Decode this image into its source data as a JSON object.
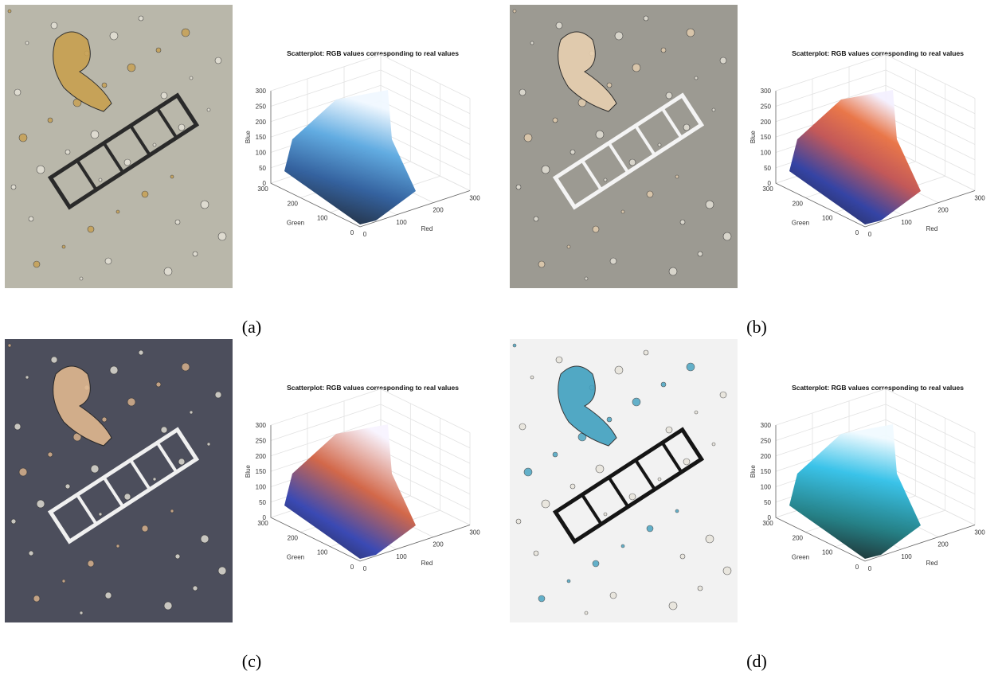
{
  "figure": {
    "panels": [
      {
        "label": "(a)",
        "plot": {
          "title": "Scatterplot: RGB values corresponding to real values",
          "x_label": "Red",
          "y_label": "Green",
          "z_label": "Blue",
          "xlim": [
            0,
            300
          ],
          "ylim": [
            0,
            300
          ],
          "zlim": [
            0,
            300
          ],
          "xticks": [
            0,
            100,
            200,
            300
          ],
          "yticks": [
            0,
            100,
            200,
            300
          ],
          "zticks": [
            0,
            50,
            100,
            150,
            200,
            250,
            300
          ]
        }
      },
      {
        "label": "(b)",
        "plot": {
          "title": "Scatterplot: RGB values corresponding to real values",
          "x_label": "Red",
          "y_label": "Green",
          "z_label": "Blue",
          "xlim": [
            0,
            300
          ],
          "ylim": [
            0,
            300
          ],
          "zlim": [
            0,
            300
          ],
          "xticks": [
            0,
            100,
            200,
            300
          ],
          "yticks": [
            0,
            100,
            200,
            300
          ],
          "zticks": [
            0,
            50,
            100,
            150,
            200,
            250,
            300
          ]
        }
      },
      {
        "label": "(c)",
        "plot": {
          "title": "Scatterplot: RGB values corresponding to real values",
          "x_label": "Red",
          "y_label": "Green",
          "z_label": "Blue",
          "xlim": [
            0,
            300
          ],
          "ylim": [
            0,
            300
          ],
          "zlim": [
            0,
            300
          ],
          "xticks": [
            0,
            100,
            200,
            300
          ],
          "yticks": [
            0,
            100,
            200,
            300
          ],
          "zticks": [
            0,
            50,
            100,
            150,
            200,
            250,
            300
          ]
        }
      },
      {
        "label": "(d)",
        "plot": {
          "title": "Scatterplot: RGB values corresponding to real values",
          "x_label": "Red",
          "y_label": "Green",
          "z_label": "Blue",
          "xlim": [
            0,
            300
          ],
          "ylim": [
            0,
            300
          ],
          "zlim": [
            0,
            300
          ],
          "xticks": [
            0,
            100,
            200,
            300
          ],
          "yticks": [
            0,
            100,
            200,
            300
          ],
          "zticks": [
            0,
            50,
            100,
            150,
            200,
            250,
            300
          ]
        }
      }
    ]
  }
}
